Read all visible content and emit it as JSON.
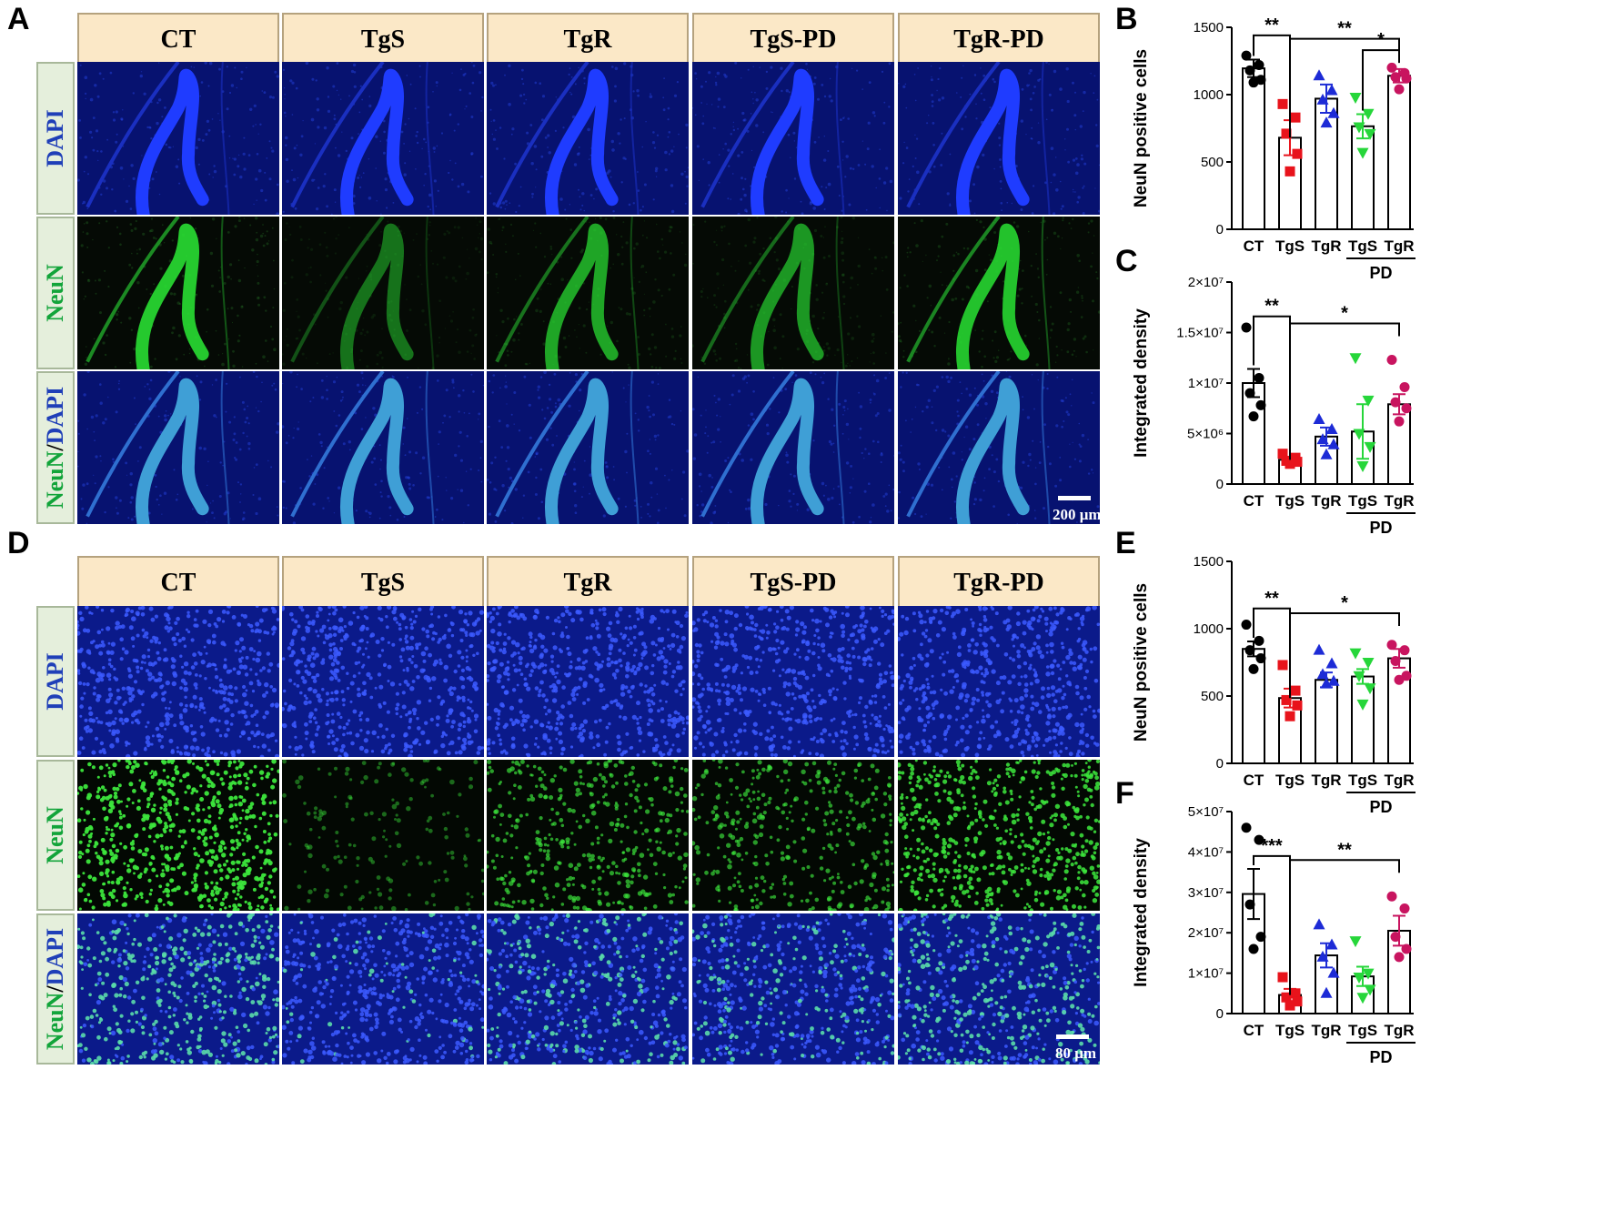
{
  "panel_letters": {
    "a": "A",
    "b": "B",
    "c": "C",
    "d": "D",
    "e": "E",
    "f": "F"
  },
  "columns": [
    "CT",
    "TgS",
    "TgR",
    "TgS-PD",
    "TgR-PD"
  ],
  "rows": {
    "dapi": "DAPI",
    "neun": "NeuN",
    "merge_neun": "NeuN",
    "merge_sep": "/",
    "merge_dapi": "DAPI"
  },
  "scalebars": {
    "a": "200 μm",
    "d": "80 μm"
  },
  "colors": {
    "header_bg": "#fbe8c7",
    "row_bg": "#e5efdc",
    "dapi": "#1f3fb8",
    "neun": "#12a43a",
    "CT": "#000000",
    "TgS": "#e8131b",
    "TgR": "#1d2bd6",
    "TgS-PD": "#26d63a",
    "TgR-PD": "#c8145f"
  },
  "chart_data": [
    {
      "id": "B",
      "type": "bar",
      "ylabel": "NeuN positive cells",
      "categories": [
        "CT",
        "TgS",
        "TgR",
        "TgS",
        "TgR"
      ],
      "group_label": "PD",
      "ylim": [
        0,
        1500
      ],
      "yticks": [
        "0",
        "500",
        "1000",
        "1500"
      ],
      "ytick_values": [
        0,
        500,
        1000,
        1500
      ],
      "means": [
        1195,
        680,
        970,
        765,
        1140
      ],
      "sem": [
        65,
        130,
        105,
        90,
        50
      ],
      "points": [
        [
          1290,
          1220,
          1180,
          1110,
          1090
        ],
        [
          930,
          830,
          710,
          560,
          430
        ],
        [
          1140,
          1030,
          960,
          860,
          790
        ],
        [
          980,
          860,
          760,
          710,
          570
        ],
        [
          1200,
          1160,
          1130,
          1120,
          1040
        ]
      ],
      "markers": [
        "circle",
        "square",
        "triangle",
        "invtriangle",
        "circle"
      ],
      "sig": [
        {
          "label": "**",
          "from": 0,
          "to": 1,
          "y": 1440
        },
        {
          "label": "**",
          "from": 1,
          "to": 4,
          "y": 1415
        },
        {
          "label": "*",
          "from": 3,
          "to": 4,
          "y": 1330
        }
      ]
    },
    {
      "id": "C",
      "type": "bar",
      "ylabel": "Integrated density",
      "categories": [
        "CT",
        "TgS",
        "TgR",
        "TgS",
        "TgR"
      ],
      "group_label": "PD",
      "ylim": [
        0,
        20000000
      ],
      "yticks": [
        "0",
        "5×10⁶",
        "1×10⁷",
        "1.5×10⁷",
        "2×10⁷"
      ],
      "ytick_values": [
        0,
        5000000,
        10000000,
        15000000,
        20000000
      ],
      "means": [
        10000000,
        2400000,
        4700000,
        5200000,
        7900000
      ],
      "sem": [
        1400000,
        300000,
        900000,
        2700000,
        1000000
      ],
      "points": [
        [
          15500000,
          10500000,
          9000000,
          7800000,
          6700000
        ],
        [
          3000000,
          2600000,
          2300000,
          2200000,
          2000000
        ],
        [
          6400000,
          5400000,
          4400000,
          3900000,
          2900000
        ],
        [
          12500000,
          8300000,
          5000000,
          3700000,
          1800000
        ],
        [
          12300000,
          9600000,
          8100000,
          7500000,
          6200000
        ]
      ],
      "markers": [
        "circle",
        "square",
        "triangle",
        "invtriangle",
        "circle"
      ],
      "sig": [
        {
          "label": "**",
          "from": 0,
          "to": 1,
          "y": 16600000
        },
        {
          "label": "*",
          "from": 1,
          "to": 4,
          "y": 15900000
        }
      ]
    },
    {
      "id": "E",
      "type": "bar",
      "ylabel": "NeuN positive cells",
      "categories": [
        "CT",
        "TgS",
        "TgR",
        "TgS",
        "TgR"
      ],
      "group_label": "PD",
      "ylim": [
        0,
        1500
      ],
      "yticks": [
        "0",
        "500",
        "1000",
        "1500"
      ],
      "ytick_values": [
        0,
        500,
        1000,
        1500
      ],
      "means": [
        850,
        485,
        620,
        645,
        780
      ],
      "sem": [
        55,
        70,
        55,
        55,
        70
      ],
      "points": [
        [
          1030,
          910,
          840,
          780,
          700
        ],
        [
          730,
          540,
          470,
          430,
          350
        ],
        [
          840,
          740,
          660,
          610,
          590
        ],
        [
          820,
          750,
          650,
          560,
          440
        ],
        [
          880,
          840,
          760,
          650,
          620
        ]
      ],
      "markers": [
        "circle",
        "square",
        "triangle",
        "invtriangle",
        "circle"
      ],
      "sig": [
        {
          "label": "**",
          "from": 0,
          "to": 1,
          "y": 1150
        },
        {
          "label": "*",
          "from": 1,
          "to": 4,
          "y": 1115
        }
      ]
    },
    {
      "id": "F",
      "type": "bar",
      "ylabel": "Integrated density",
      "categories": [
        "CT",
        "TgS",
        "TgR",
        "TgS",
        "TgR"
      ],
      "group_label": "PD",
      "ylim": [
        0,
        50000000
      ],
      "yticks": [
        "0",
        "1×10⁷",
        "2×10⁷",
        "3×10⁷",
        "4×10⁷",
        "5×10⁷"
      ],
      "ytick_values": [
        0,
        10000000,
        20000000,
        30000000,
        40000000,
        50000000
      ],
      "means": [
        29600000,
        4600000,
        14400000,
        9200000,
        20500000
      ],
      "sem": [
        6200000,
        1500000,
        3000000,
        2400000,
        3700000
      ],
      "points": [
        [
          46000000,
          43000000,
          27000000,
          19000000,
          16000000
        ],
        [
          9000000,
          5000000,
          4000000,
          3000000,
          2000000
        ],
        [
          22000000,
          17000000,
          14000000,
          10000000,
          5000000
        ],
        [
          18000000,
          10000000,
          9000000,
          6000000,
          4000000
        ],
        [
          29000000,
          26000000,
          19000000,
          16000000,
          14000000
        ]
      ],
      "markers": [
        "circle",
        "square",
        "triangle",
        "invtriangle",
        "circle"
      ],
      "sig": [
        {
          "label": "***",
          "from": 0,
          "to": 1,
          "y": 39000000
        },
        {
          "label": "**",
          "from": 1,
          "to": 4,
          "y": 38000000
        }
      ]
    }
  ]
}
